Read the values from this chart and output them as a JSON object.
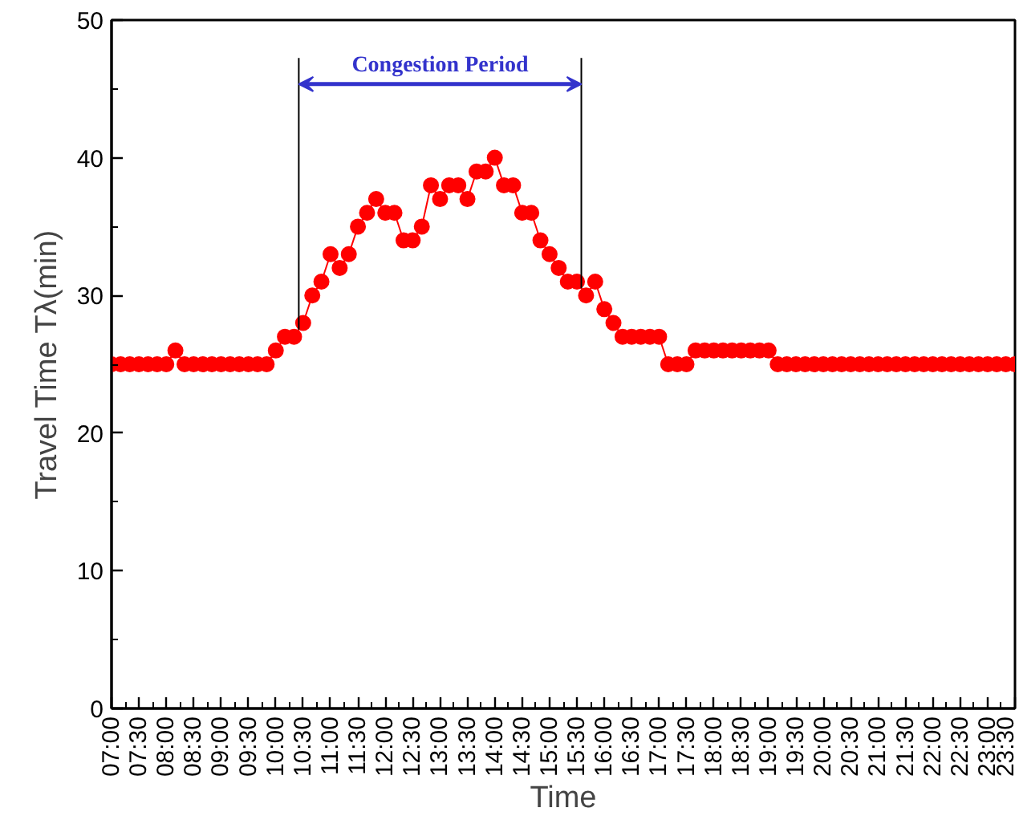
{
  "chart_data": {
    "type": "line",
    "xlabel": "Time",
    "ylabel": "Travel Time Tλ(min)",
    "x": [
      7.0,
      7.1667,
      7.3333,
      7.5,
      7.6667,
      7.8333,
      8.0,
      8.1667,
      8.3333,
      8.5,
      8.6667,
      8.8333,
      9.0,
      9.1667,
      9.3333,
      9.5,
      9.6667,
      9.8333,
      10.0,
      10.1667,
      10.3333,
      10.5,
      10.6667,
      10.8333,
      11.0,
      11.1667,
      11.3333,
      11.5,
      11.6667,
      11.8333,
      12.0,
      12.1667,
      12.3333,
      12.5,
      12.6667,
      12.8333,
      13.0,
      13.1667,
      13.3333,
      13.5,
      13.6667,
      13.8333,
      14.0,
      14.1667,
      14.3333,
      14.5,
      14.6667,
      14.8333,
      15.0,
      15.1667,
      15.3333,
      15.5,
      15.6667,
      15.8333,
      16.0,
      16.1667,
      16.3333,
      16.5,
      16.6667,
      16.8333,
      17.0,
      17.1667,
      17.3333,
      17.5,
      17.6667,
      17.8333,
      18.0,
      18.1667,
      18.3333,
      18.5,
      18.6667,
      18.8333,
      19.0,
      19.1667,
      19.3333,
      19.5,
      19.6667,
      19.8333,
      20.0,
      20.1667,
      20.3333,
      20.5,
      20.6667,
      20.8333,
      21.0,
      21.1667,
      21.3333,
      21.5,
      21.6667,
      21.8333,
      22.0,
      22.1667,
      22.3333,
      22.5,
      22.6667,
      22.8333,
      23.0,
      23.1667,
      23.3333,
      23.5
    ],
    "series": [
      {
        "color": "#ff0000",
        "values": [
          25,
          25,
          25,
          25,
          25,
          25,
          25,
          26,
          25,
          25,
          25,
          25,
          25,
          25,
          25,
          25,
          25,
          25,
          26,
          27,
          27,
          28,
          30,
          31,
          33,
          32,
          33,
          35,
          36,
          37,
          36,
          36,
          34,
          34,
          35,
          38,
          37,
          38,
          38,
          37,
          39,
          39,
          40,
          38,
          38,
          36,
          36,
          34,
          33,
          32,
          31,
          31,
          30,
          31,
          29,
          28,
          27,
          27,
          27,
          27,
          27,
          25,
          25,
          25,
          26,
          26,
          26,
          26,
          26,
          26,
          26,
          26,
          26,
          25,
          25,
          25,
          25,
          25,
          25,
          25,
          25,
          25,
          25,
          25,
          25,
          25,
          25,
          25,
          25,
          25,
          25,
          25,
          25,
          25,
          25,
          25,
          25,
          25,
          25,
          25
        ]
      }
    ],
    "xlim": [
      7,
      23.5
    ],
    "ylim": [
      0,
      50
    ],
    "xticks": [
      {
        "value": 7,
        "label": "07:00"
      },
      {
        "value": 7.5,
        "label": "07:30"
      },
      {
        "value": 8,
        "label": "08:00"
      },
      {
        "value": 8.5,
        "label": "08:30"
      },
      {
        "value": 9,
        "label": "09:00"
      },
      {
        "value": 9.5,
        "label": "09:30"
      },
      {
        "value": 10,
        "label": "10:00"
      },
      {
        "value": 10.5,
        "label": "10:30"
      },
      {
        "value": 11,
        "label": "11:00"
      },
      {
        "value": 11.5,
        "label": "11:30"
      },
      {
        "value": 12,
        "label": "12:00"
      },
      {
        "value": 12.5,
        "label": "12:30"
      },
      {
        "value": 13,
        "label": "13:00"
      },
      {
        "value": 13.5,
        "label": "13:30"
      },
      {
        "value": 14,
        "label": "14:00"
      },
      {
        "value": 14.5,
        "label": "14:30"
      },
      {
        "value": 15,
        "label": "15:00"
      },
      {
        "value": 15.5,
        "label": "15:30"
      },
      {
        "value": 16,
        "label": "16:00"
      },
      {
        "value": 16.5,
        "label": "16:30"
      },
      {
        "value": 17,
        "label": "17:00"
      },
      {
        "value": 17.5,
        "label": "17:30"
      },
      {
        "value": 18,
        "label": "18:00"
      },
      {
        "value": 18.5,
        "label": "18:30"
      },
      {
        "value": 19,
        "label": "19:00"
      },
      {
        "value": 19.5,
        "label": "19:30"
      },
      {
        "value": 20,
        "label": "20:00"
      },
      {
        "value": 20.5,
        "label": "20:30"
      },
      {
        "value": 21,
        "label": "21:00"
      },
      {
        "value": 21.5,
        "label": "21:30"
      },
      {
        "value": 22,
        "label": "22:00"
      },
      {
        "value": 22.5,
        "label": "22:30"
      },
      {
        "value": 23,
        "label": "23:00"
      },
      {
        "value": 23.5,
        "label": "23:30"
      }
    ],
    "yticks": [
      0,
      10,
      20,
      30,
      40,
      50
    ],
    "ref_lines": [
      {
        "axis": "x",
        "value": 10.42,
        "color": "#000000"
      },
      {
        "axis": "x",
        "value": 15.58,
        "color": "#000000"
      }
    ],
    "annotations": [
      "Congestion Period"
    ],
    "grid": false,
    "marker": "circle",
    "line_style": "solid"
  }
}
